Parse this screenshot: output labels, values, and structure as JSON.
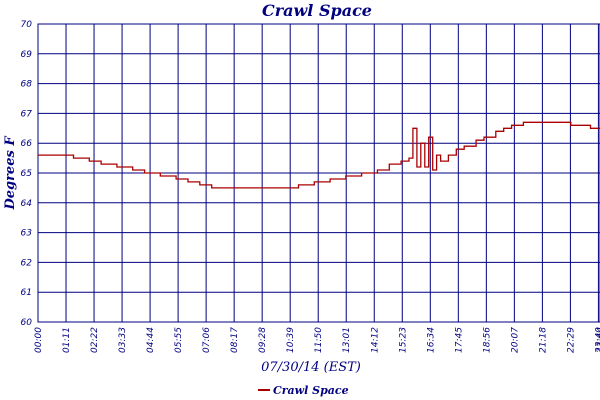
{
  "chart_data": {
    "type": "line",
    "title": "Crawl Space",
    "xlabel": "07/30/14 (EST)",
    "ylabel": "Degrees F",
    "ylim": [
      60,
      70
    ],
    "yticks": [
      "60",
      "61",
      "62",
      "63",
      "64",
      "65",
      "66",
      "67",
      "68",
      "69",
      "70"
    ],
    "xticks": [
      "00:00",
      "01:11",
      "02:22",
      "03:33",
      "04:44",
      "05:55",
      "07:06",
      "08:17",
      "09:28",
      "10:39",
      "11:50",
      "13:01",
      "14:12",
      "15:23",
      "16:34",
      "17:45",
      "18:56",
      "20:07",
      "21:18",
      "22:29",
      "23:40",
      "23:44"
    ],
    "grid": true,
    "legend": "bottom-center",
    "colors": {
      "series": "#aa0000",
      "grid": "#000080",
      "text": "#000080"
    },
    "series": [
      {
        "name": "Crawl Space",
        "x": [
          "00:00",
          "01:00",
          "01:30",
          "02:10",
          "02:40",
          "03:20",
          "04:00",
          "04:30",
          "05:10",
          "05:50",
          "06:20",
          "06:50",
          "07:20",
          "08:00",
          "08:50",
          "09:30",
          "10:20",
          "11:00",
          "11:40",
          "12:20",
          "13:00",
          "13:40",
          "14:20",
          "14:50",
          "15:20",
          "15:40",
          "15:50",
          "16:00",
          "16:10",
          "16:20",
          "16:30",
          "16:40",
          "16:50",
          "17:00",
          "17:20",
          "17:40",
          "18:00",
          "18:30",
          "18:50",
          "19:20",
          "19:40",
          "20:00",
          "20:30",
          "21:00",
          "21:30",
          "22:00",
          "22:30",
          "23:00",
          "23:20",
          "23:44"
        ],
        "y": [
          65.6,
          65.6,
          65.5,
          65.4,
          65.3,
          65.2,
          65.1,
          65.0,
          64.9,
          64.8,
          64.7,
          64.6,
          64.5,
          64.5,
          64.5,
          64.5,
          64.5,
          64.6,
          64.7,
          64.8,
          64.9,
          65.0,
          65.1,
          65.3,
          65.4,
          65.5,
          66.5,
          65.2,
          66.0,
          65.2,
          66.2,
          65.1,
          65.6,
          65.4,
          65.6,
          65.8,
          65.9,
          66.1,
          66.2,
          66.4,
          66.5,
          66.6,
          66.7,
          66.7,
          66.7,
          66.7,
          66.6,
          66.6,
          66.5,
          66.5
        ]
      }
    ]
  }
}
